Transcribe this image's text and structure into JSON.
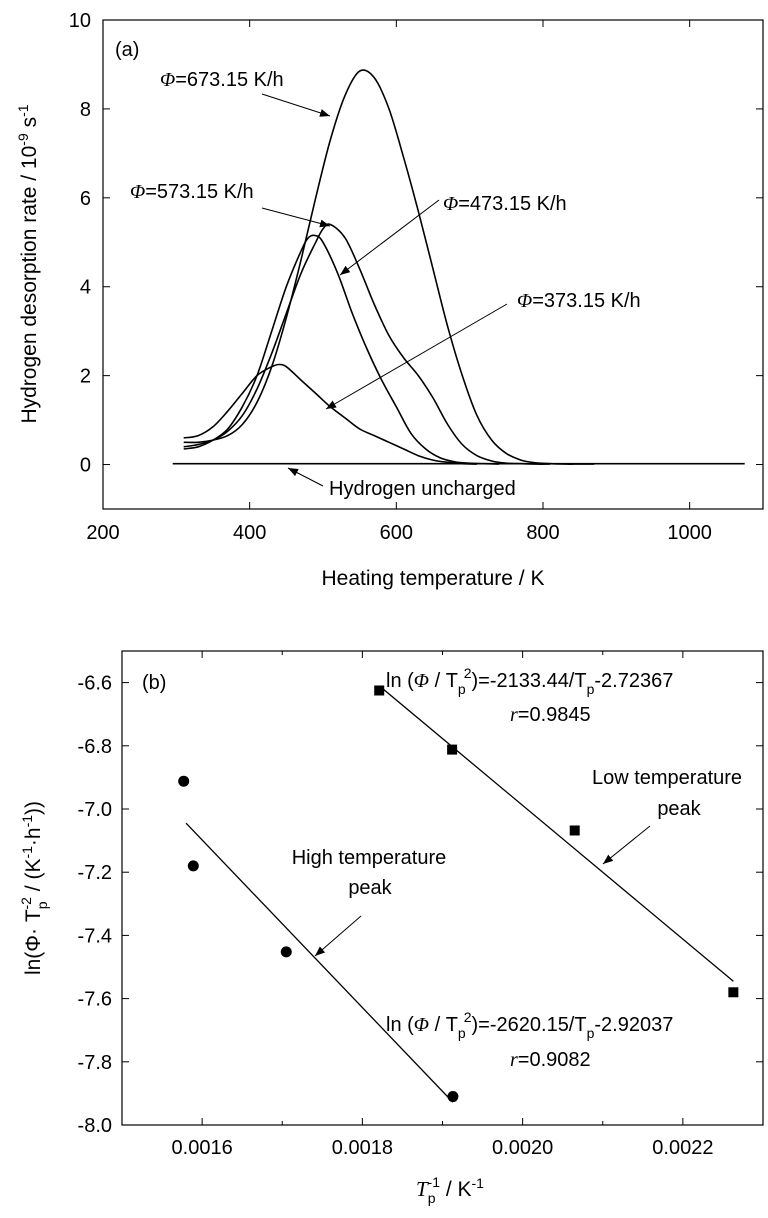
{
  "chart_data": [
    {
      "panel_label": "(a)",
      "type": "line",
      "xlabel": "Heating temperature / K",
      "ylabel": "Hydrogen desorption rate / 10",
      "ylabel_exp": "-9",
      "ylabel_unit": " s",
      "ylabel_unit_exp": "-1",
      "xlim": [
        200,
        1100
      ],
      "ylim": [
        -1,
        10
      ],
      "xticks": [
        "200",
        "400",
        "600",
        "800",
        "1000"
      ],
      "yticks": [
        "0",
        "2",
        "4",
        "6",
        "8",
        "10"
      ],
      "grid": false,
      "series": [
        {
          "label_sym": "Φ",
          "label_text": "=673.15 K/h",
          "x": [
            310,
            330,
            350,
            370,
            390,
            410,
            430,
            450,
            470,
            490,
            510,
            530,
            550,
            570,
            590,
            610,
            630,
            650,
            670,
            690,
            710,
            730,
            750,
            770,
            790,
            810,
            830,
            850,
            870
          ],
          "y": [
            0.5,
            0.5,
            0.55,
            0.65,
            0.9,
            1.4,
            2.2,
            3.3,
            4.6,
            6.0,
            7.3,
            8.3,
            8.85,
            8.7,
            8.0,
            6.9,
            5.7,
            4.4,
            3.1,
            2.0,
            1.1,
            0.55,
            0.25,
            0.1,
            0.04,
            0.02,
            0.01,
            0.01,
            0.01
          ]
        },
        {
          "label_sym": "Φ",
          "label_text": "=573.15 K/h",
          "x": [
            310,
            330,
            350,
            370,
            390,
            410,
            430,
            450,
            470,
            490,
            500,
            510,
            530,
            550,
            570,
            590,
            610,
            630,
            650,
            670,
            690,
            710,
            730,
            750,
            770,
            790,
            810
          ],
          "y": [
            0.4,
            0.45,
            0.55,
            0.75,
            1.1,
            1.7,
            2.5,
            3.4,
            4.3,
            5.0,
            5.3,
            5.4,
            5.1,
            4.4,
            3.6,
            2.9,
            2.4,
            2.0,
            1.5,
            0.9,
            0.45,
            0.2,
            0.08,
            0.03,
            0.02,
            0.01,
            0.01
          ]
        },
        {
          "label_sym": "Φ",
          "label_text": "=473.15 K/h",
          "x": [
            310,
            330,
            350,
            370,
            390,
            410,
            430,
            450,
            470,
            480,
            490,
            500,
            520,
            540,
            560,
            580,
            600,
            620,
            640,
            660,
            680,
            700,
            720,
            740
          ],
          "y": [
            0.35,
            0.4,
            0.55,
            0.8,
            1.3,
            2.0,
            3.0,
            4.0,
            4.8,
            5.1,
            5.15,
            5.0,
            4.3,
            3.4,
            2.6,
            1.9,
            1.3,
            0.7,
            0.35,
            0.15,
            0.06,
            0.03,
            0.02,
            0.01
          ]
        },
        {
          "label_sym": "Φ",
          "label_text": "=373.15 K/h",
          "x": [
            310,
            330,
            350,
            370,
            390,
            410,
            430,
            440,
            450,
            470,
            490,
            510,
            530,
            550,
            570,
            590,
            610,
            630,
            650,
            670,
            690,
            710
          ],
          "y": [
            0.6,
            0.65,
            0.85,
            1.2,
            1.6,
            2.0,
            2.2,
            2.25,
            2.2,
            1.9,
            1.6,
            1.3,
            1.05,
            0.8,
            0.65,
            0.5,
            0.35,
            0.2,
            0.1,
            0.05,
            0.02,
            0.01
          ]
        },
        {
          "label": "Hydrogen uncharged",
          "x": [
            295,
            400,
            500,
            600,
            700,
            800,
            900,
            1000,
            1075
          ],
          "y": [
            0.02,
            0.02,
            0.02,
            0.02,
            0.02,
            0.02,
            0.02,
            0.02,
            0.02
          ]
        }
      ]
    },
    {
      "panel_label": "(b)",
      "type": "scatter",
      "xlabel": "T",
      "xlabel_sub": "p",
      "xlabel_sup": "-1",
      "xlabel_unit": " / K",
      "xlabel_unit_sup": "-1",
      "ylabel": "ln(Φ· T",
      "ylabel_sub": "p",
      "ylabel_sup": "-2",
      "ylabel_mid": " / (K",
      "ylabel_sup2": "-1",
      "ylabel_mid2": "·h",
      "ylabel_sup3": "-1",
      "ylabel_end": "))",
      "xlim": [
        0.0015,
        0.0023
      ],
      "ylim": [
        -8.0,
        -6.5
      ],
      "xticks": [
        "0.0016",
        "0.0018",
        "0.0020",
        "0.0022"
      ],
      "yticks": [
        "-6.6",
        "-6.8",
        "-7.0",
        "-7.2",
        "-7.4",
        "-7.6",
        "-7.8",
        "-8.0"
      ],
      "grid": false,
      "series": [
        {
          "name": "Low temperature peak",
          "marker": "square",
          "x": [
            0.001821,
            0.001912,
            0.002065,
            0.002263
          ],
          "y": [
            -6.625,
            -6.812,
            -7.068,
            -7.58
          ],
          "fit": {
            "x": [
              0.001821,
              0.002263
            ],
            "y": [
              -6.61,
              -7.545
            ]
          },
          "eq_pre": "ln (",
          "eq_sym": "Φ",
          "eq_mid": " / T",
          "eq_sub": "p",
          "eq_sup": "2",
          "eq_post": ")=-2133.44/T",
          "eq_sub2": "p",
          "eq_end": "-2.72367",
          "r_label": "r",
          "r_text": "=0.9845",
          "label_line1": "Low temperature",
          "label_line2": "peak"
        },
        {
          "name": "High temperature peak",
          "marker": "circle",
          "x": [
            0.001577,
            0.001589,
            0.001705,
            0.001913
          ],
          "y": [
            -6.912,
            -7.18,
            -7.452,
            -7.91
          ],
          "fit": {
            "x": [
              0.00158,
              0.001913
            ],
            "y": [
              -7.045,
              -7.928
            ]
          },
          "eq_pre": "ln (",
          "eq_sym": "Φ",
          "eq_mid": " / T",
          "eq_sub": "p",
          "eq_sup": "2",
          "eq_post": ")=-2620.15/T",
          "eq_sub2": "p",
          "eq_end": "-2.92037",
          "r_label": "r",
          "r_text": "=0.9082",
          "label_line1": "High temperature",
          "label_line2": "peak"
        }
      ]
    }
  ]
}
